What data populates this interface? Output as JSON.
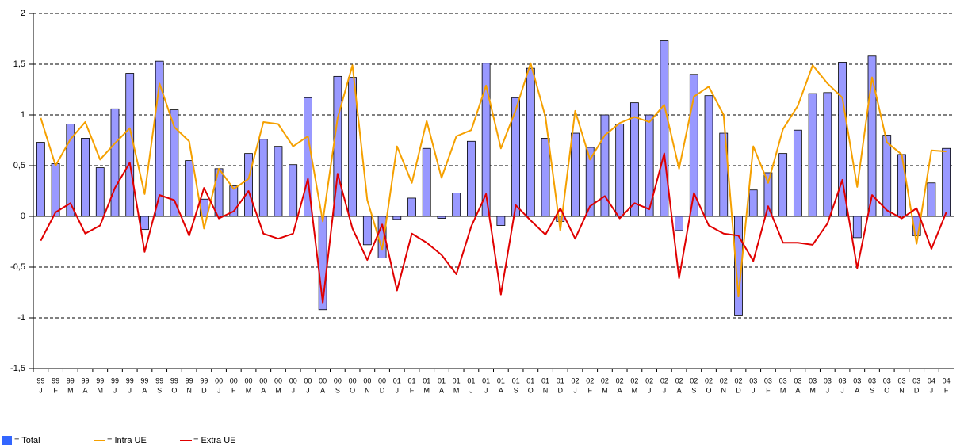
{
  "chart_data": {
    "type": "bar-line",
    "categories": [
      {
        "year": "99",
        "month": "J"
      },
      {
        "year": "99",
        "month": "F"
      },
      {
        "year": "99",
        "month": "M"
      },
      {
        "year": "99",
        "month": "A"
      },
      {
        "year": "99",
        "month": "M"
      },
      {
        "year": "99",
        "month": "J"
      },
      {
        "year": "99",
        "month": "J"
      },
      {
        "year": "99",
        "month": "A"
      },
      {
        "year": "99",
        "month": "S"
      },
      {
        "year": "99",
        "month": "O"
      },
      {
        "year": "99",
        "month": "N"
      },
      {
        "year": "99",
        "month": "D"
      },
      {
        "year": "00",
        "month": "J"
      },
      {
        "year": "00",
        "month": "F"
      },
      {
        "year": "00",
        "month": "M"
      },
      {
        "year": "00",
        "month": "A"
      },
      {
        "year": "00",
        "month": "M"
      },
      {
        "year": "00",
        "month": "J"
      },
      {
        "year": "00",
        "month": "J"
      },
      {
        "year": "00",
        "month": "A"
      },
      {
        "year": "00",
        "month": "S"
      },
      {
        "year": "00",
        "month": "O"
      },
      {
        "year": "00",
        "month": "N"
      },
      {
        "year": "00",
        "month": "D"
      },
      {
        "year": "01",
        "month": "J"
      },
      {
        "year": "01",
        "month": "F"
      },
      {
        "year": "01",
        "month": "M"
      },
      {
        "year": "01",
        "month": "A"
      },
      {
        "year": "01",
        "month": "M"
      },
      {
        "year": "01",
        "month": "J"
      },
      {
        "year": "01",
        "month": "J"
      },
      {
        "year": "01",
        "month": "A"
      },
      {
        "year": "01",
        "month": "S"
      },
      {
        "year": "01",
        "month": "O"
      },
      {
        "year": "01",
        "month": "N"
      },
      {
        "year": "01",
        "month": "D"
      },
      {
        "year": "02",
        "month": "J"
      },
      {
        "year": "02",
        "month": "F"
      },
      {
        "year": "02",
        "month": "M"
      },
      {
        "year": "02",
        "month": "A"
      },
      {
        "year": "02",
        "month": "M"
      },
      {
        "year": "02",
        "month": "J"
      },
      {
        "year": "02",
        "month": "J"
      },
      {
        "year": "02",
        "month": "A"
      },
      {
        "year": "02",
        "month": "S"
      },
      {
        "year": "02",
        "month": "O"
      },
      {
        "year": "02",
        "month": "N"
      },
      {
        "year": "02",
        "month": "D"
      },
      {
        "year": "03",
        "month": "J"
      },
      {
        "year": "03",
        "month": "F"
      },
      {
        "year": "03",
        "month": "M"
      },
      {
        "year": "03",
        "month": "A"
      },
      {
        "year": "03",
        "month": "M"
      },
      {
        "year": "03",
        "month": "J"
      },
      {
        "year": "03",
        "month": "J"
      },
      {
        "year": "03",
        "month": "A"
      },
      {
        "year": "03",
        "month": "S"
      },
      {
        "year": "03",
        "month": "O"
      },
      {
        "year": "03",
        "month": "N"
      },
      {
        "year": "03",
        "month": "D"
      },
      {
        "year": "04",
        "month": "J"
      },
      {
        "year": "04",
        "month": "F"
      }
    ],
    "series": [
      {
        "name": "= Total",
        "kind": "bar",
        "color": "#9999ff",
        "values": [
          0.73,
          0.52,
          0.91,
          0.77,
          0.48,
          1.06,
          1.41,
          -0.13,
          1.53,
          1.05,
          0.55,
          0.17,
          0.47,
          0.3,
          0.62,
          0.76,
          0.69,
          0.51,
          1.17,
          -0.92,
          1.38,
          1.37,
          -0.28,
          -0.41,
          -0.03,
          0.18,
          0.67,
          -0.02,
          0.23,
          0.74,
          1.51,
          -0.09,
          1.17,
          1.46,
          0.77,
          -0.05,
          0.82,
          0.68,
          1.0,
          0.91,
          1.12,
          1.0,
          1.73,
          -0.14,
          1.4,
          1.19,
          0.82,
          -0.98,
          0.26,
          0.43,
          0.62,
          0.85,
          1.21,
          1.22,
          1.52,
          -0.21,
          1.58,
          0.8,
          0.61,
          -0.19,
          0.33,
          0.67
        ]
      },
      {
        "name": "= Intra UE",
        "kind": "line",
        "color": "#f5a000",
        "values": [
          0.97,
          0.5,
          0.76,
          0.93,
          0.56,
          0.72,
          0.87,
          0.22,
          1.31,
          0.88,
          0.74,
          -0.12,
          0.47,
          0.27,
          0.37,
          0.93,
          0.91,
          0.69,
          0.79,
          -0.05,
          0.97,
          1.49,
          0.16,
          -0.33,
          0.69,
          0.33,
          0.94,
          0.38,
          0.79,
          0.85,
          1.29,
          0.67,
          1.05,
          1.51,
          0.98,
          -0.14,
          1.04,
          0.56,
          0.8,
          0.92,
          0.98,
          0.93,
          1.1,
          0.47,
          1.18,
          1.28,
          1.0,
          -0.79,
          0.69,
          0.33,
          0.86,
          1.09,
          1.49,
          1.31,
          1.17,
          0.29,
          1.37,
          0.73,
          0.61,
          -0.27,
          0.65,
          0.64
        ]
      },
      {
        "name": "= Extra UE",
        "kind": "line",
        "color": "#e00000",
        "values": [
          -0.24,
          0.04,
          0.13,
          -0.17,
          -0.09,
          0.28,
          0.53,
          -0.35,
          0.21,
          0.16,
          -0.19,
          0.28,
          -0.02,
          0.05,
          0.25,
          -0.17,
          -0.22,
          -0.17,
          0.37,
          -0.85,
          0.42,
          -0.12,
          -0.43,
          -0.08,
          -0.73,
          -0.17,
          -0.26,
          -0.38,
          -0.57,
          -0.1,
          0.22,
          -0.77,
          0.11,
          -0.04,
          -0.18,
          0.08,
          -0.22,
          0.1,
          0.2,
          -0.02,
          0.13,
          0.07,
          0.62,
          -0.61,
          0.23,
          -0.09,
          -0.17,
          -0.19,
          -0.44,
          0.1,
          -0.26,
          -0.26,
          -0.28,
          -0.07,
          0.36,
          -0.51,
          0.21,
          0.06,
          -0.02,
          0.08,
          -0.32,
          0.04
        ]
      }
    ],
    "ylim": [
      -1.5,
      2
    ],
    "yticks": [
      {
        "value": -1.5,
        "label": "-1,5"
      },
      -1,
      {
        "value": -0.5,
        "label": "-0,5"
      },
      0,
      {
        "value": 0.5,
        "label": "0,5"
      },
      1,
      {
        "value": 1.5,
        "label": "1,5"
      },
      2
    ],
    "grid": true,
    "legend": "bottom-left"
  }
}
